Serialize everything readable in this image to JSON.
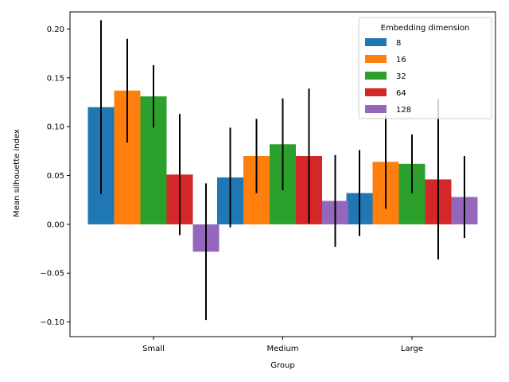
{
  "chart_data": {
    "type": "bar",
    "xlabel": "Group",
    "ylabel": "Mean silhouette index",
    "categories": [
      "Small",
      "Medium",
      "Large"
    ],
    "ylim": [
      -0.115,
      0.2175
    ],
    "yticks": [
      -0.1,
      -0.05,
      0.0,
      0.05,
      0.1,
      0.15,
      0.2
    ],
    "ytick_labels": [
      "−0.10",
      "−0.05",
      "0.00",
      "0.05",
      "0.10",
      "0.15",
      "0.20"
    ],
    "grid": false,
    "legend": {
      "title": "Embedding dimension",
      "placement": "top-right"
    },
    "series": [
      {
        "name": "8",
        "color": "#1f77b4",
        "values": [
          0.12,
          0.048,
          0.032
        ],
        "errors": [
          0.089,
          0.051,
          0.044
        ]
      },
      {
        "name": "16",
        "color": "#ff7f0e",
        "values": [
          0.137,
          0.07,
          0.064
        ],
        "errors": [
          0.053,
          0.038,
          0.048
        ]
      },
      {
        "name": "32",
        "color": "#2ca02c",
        "values": [
          0.131,
          0.082,
          0.062
        ],
        "errors": [
          0.032,
          0.047,
          0.03
        ]
      },
      {
        "name": "64",
        "color": "#d62728",
        "values": [
          0.051,
          0.07,
          0.046
        ],
        "errors": [
          0.062,
          0.069,
          0.082
        ]
      },
      {
        "name": "128",
        "color": "#9467bd",
        "values": [
          -0.028,
          0.024,
          0.028
        ],
        "errors": [
          0.07,
          0.047,
          0.042
        ]
      }
    ]
  }
}
